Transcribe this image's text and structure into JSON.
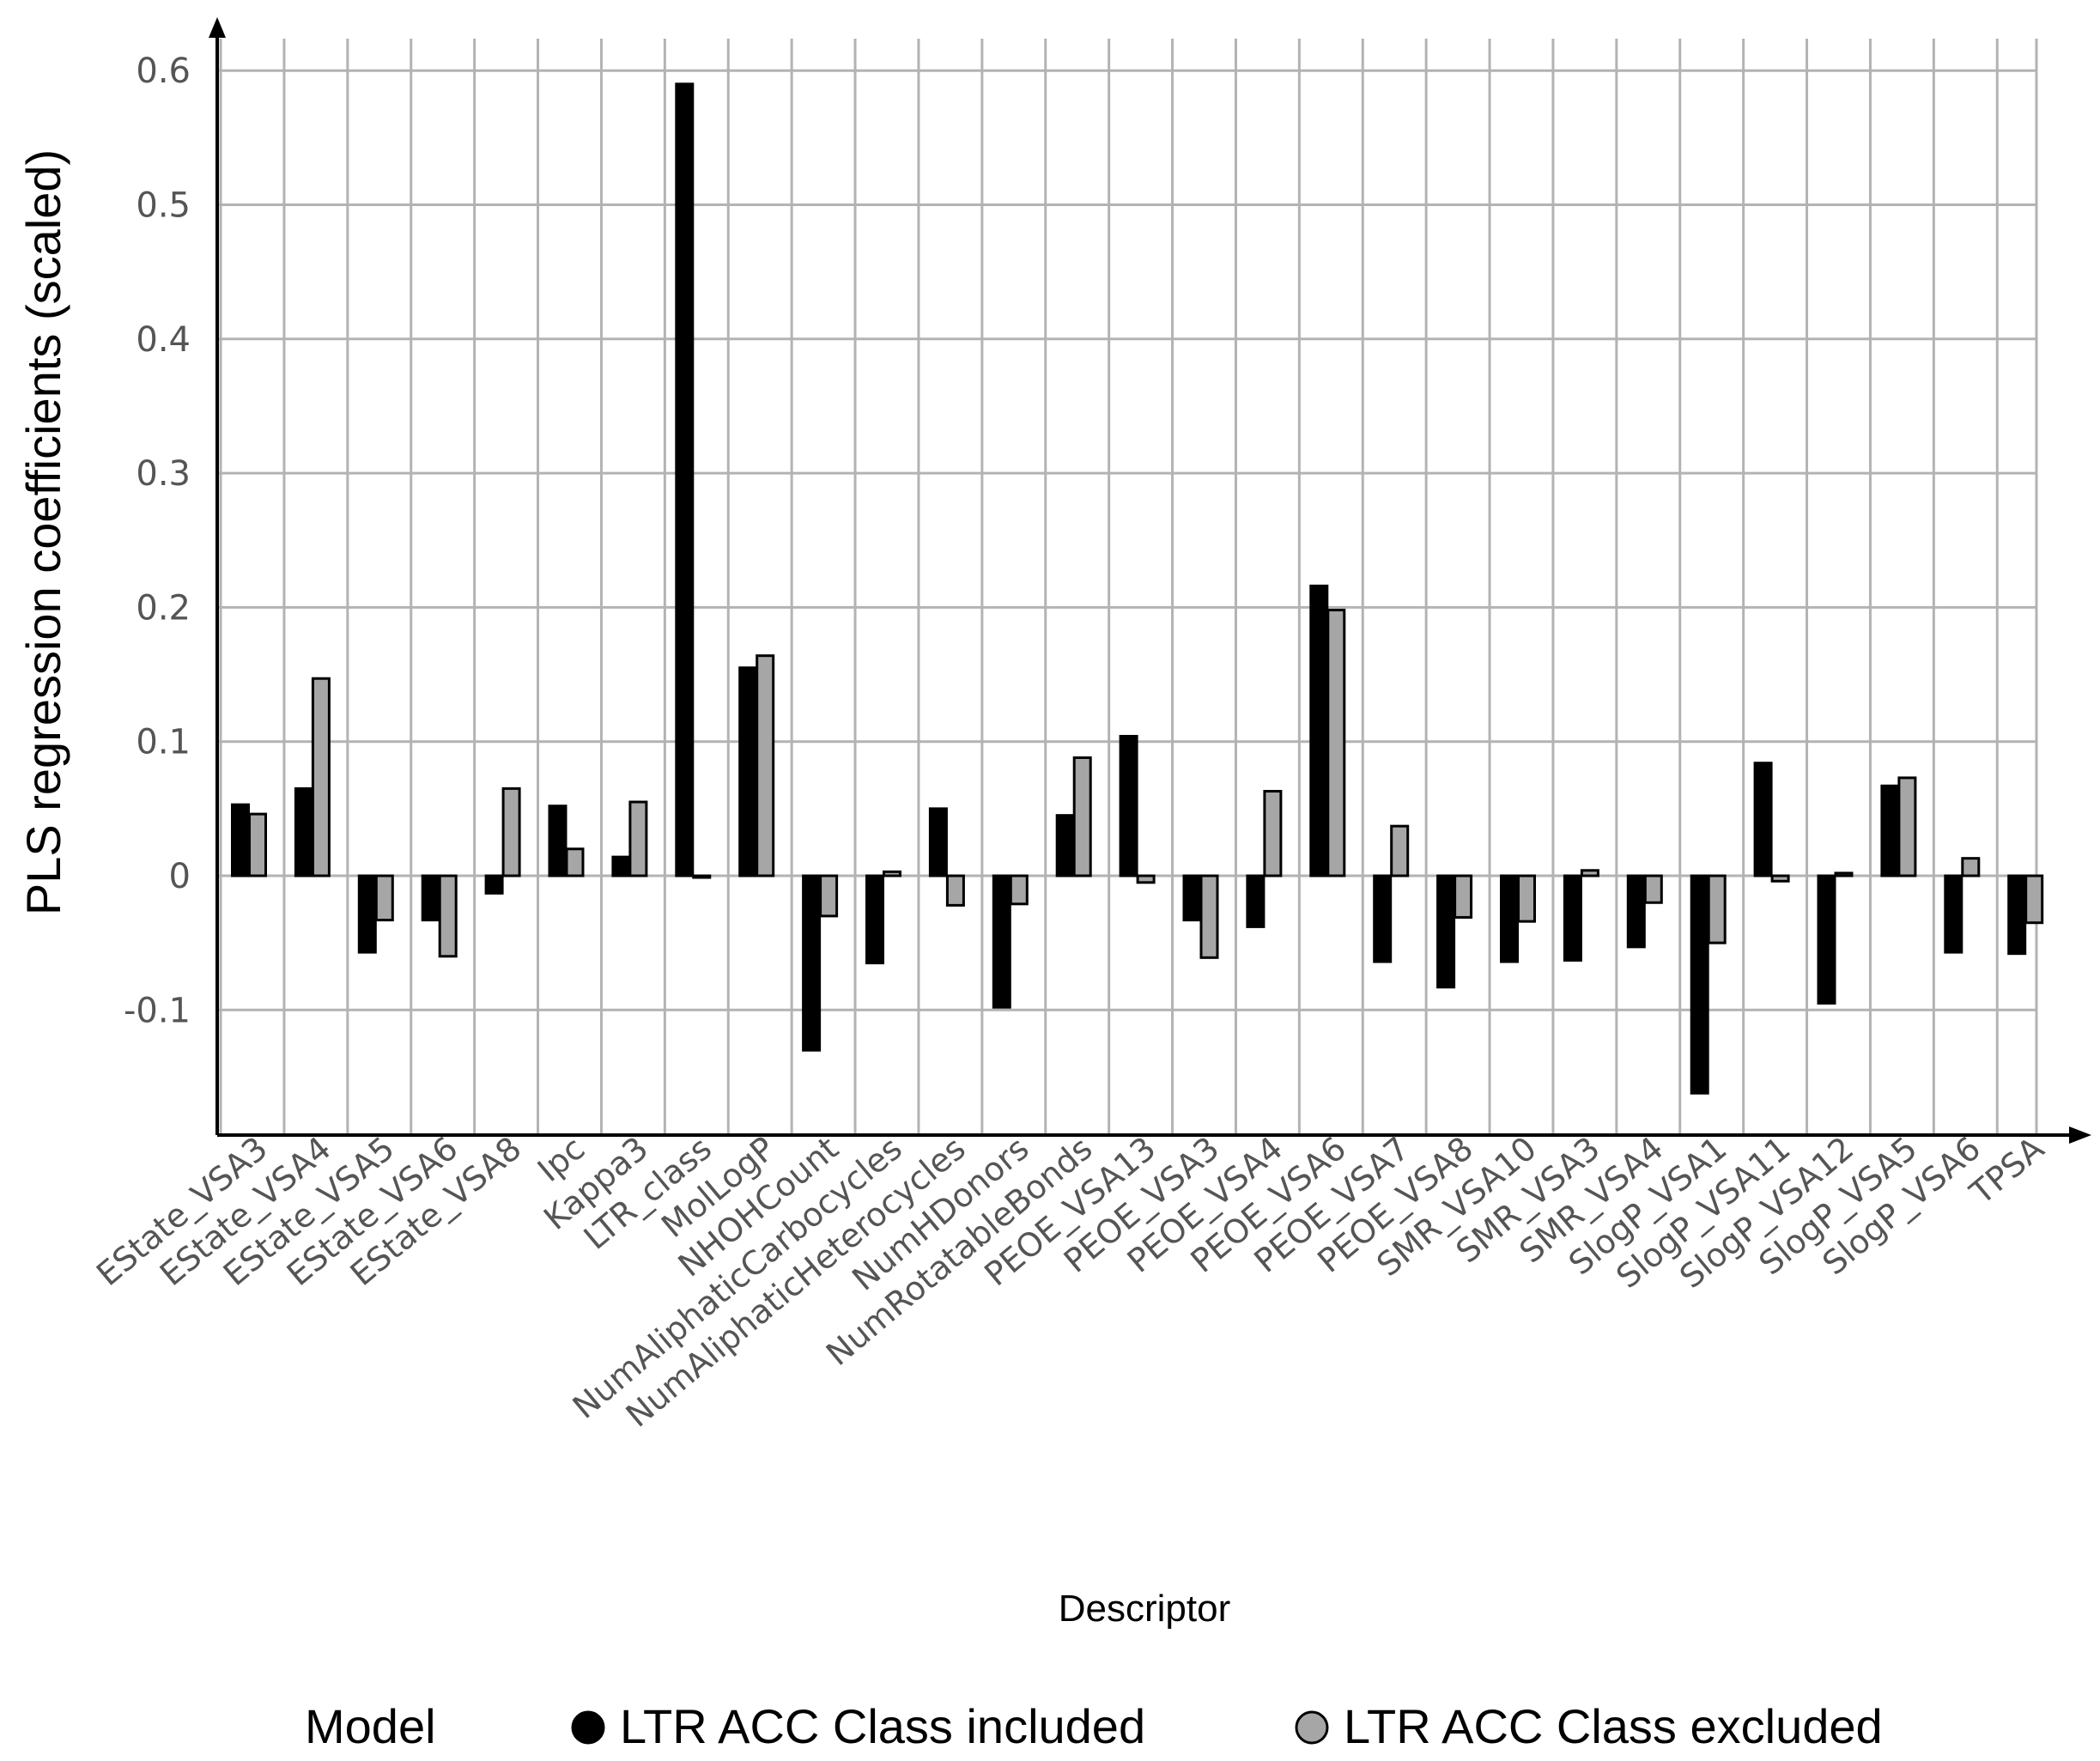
{
  "chart_data": {
    "type": "bar",
    "title": "",
    "xlabel": "Descriptor",
    "ylabel": "PLS regression coefficients (scaled)",
    "ylim": [
      -0.19,
      0.62
    ],
    "yticks": [
      -0.1,
      0,
      0.1,
      0.2,
      0.3,
      0.4,
      0.5,
      0.6
    ],
    "ytick_labels": [
      "-0.1",
      "0",
      "0.1",
      "0.2",
      "0.3",
      "0.4",
      "0.5",
      "0.6"
    ],
    "grid": true,
    "categories": [
      "EState_VSA3",
      "EState_VSA4",
      "EState_VSA5",
      "EState_VSA6",
      "EState_VSA8",
      "Ipc",
      "Kappa3",
      "LTR_class",
      "MolLogP",
      "NHOHCount",
      "NumAliphaticCarbocycles",
      "NumAliphaticHeterocycles",
      "NumHDonors",
      "NumRotatableBonds",
      "PEOE_VSA13",
      "PEOE_VSA3",
      "PEOE_VSA4",
      "PEOE_VSA6",
      "PEOE_VSA7",
      "PEOE_VSA8",
      "SMR_VSA10",
      "SMR_VSA3",
      "SMR_VSA4",
      "SlogP_VSA1",
      "SlogP_VSA11",
      "SlogP_VSA12",
      "SlogP_VSA5",
      "SlogP_VSA6",
      "TPSA"
    ],
    "series": [
      {
        "name": "LTR ACC Class included",
        "color": "#000000",
        "values": [
          0.053,
          0.065,
          -0.057,
          -0.033,
          -0.013,
          0.052,
          0.014,
          0.59,
          0.155,
          -0.13,
          -0.065,
          0.05,
          -0.098,
          0.045,
          0.104,
          -0.033,
          -0.038,
          0.216,
          -0.064,
          -0.083,
          -0.064,
          -0.063,
          -0.053,
          -0.162,
          0.084,
          -0.095,
          0.067,
          -0.057,
          -0.058
        ]
      },
      {
        "name": "LTR ACC Class excluded",
        "color": "#a6a6a6",
        "values": [
          0.046,
          0.147,
          -0.033,
          -0.06,
          0.065,
          0.02,
          0.055,
          0.0,
          0.164,
          -0.03,
          0.003,
          -0.022,
          -0.021,
          0.088,
          -0.005,
          -0.061,
          0.063,
          0.198,
          0.037,
          -0.031,
          -0.034,
          0.004,
          -0.02,
          -0.05,
          -0.004,
          0.002,
          0.073,
          0.013,
          -0.035
        ]
      }
    ],
    "legend": {
      "title": "Model",
      "placement": "bottom"
    }
  }
}
